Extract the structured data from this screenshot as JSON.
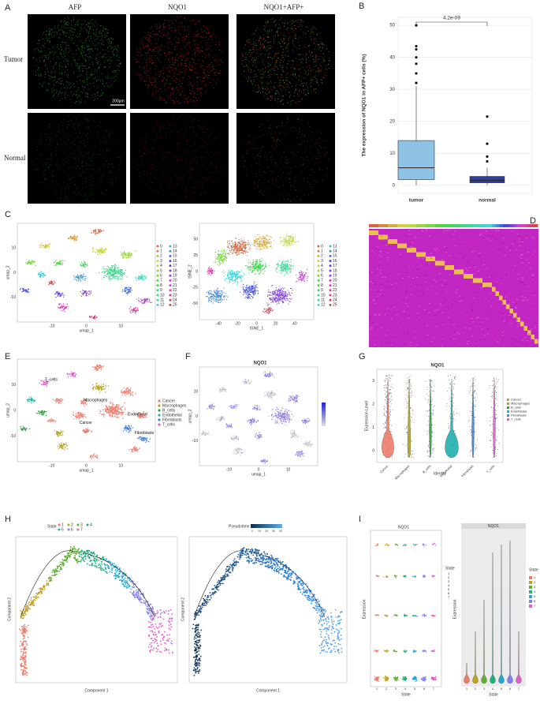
{
  "panel_a": {
    "label": "A",
    "columns": [
      "AFP",
      "NQO1",
      "NQO1+AFP+"
    ],
    "rows": [
      "Tumor",
      "Normal"
    ],
    "scale_bar": "200µm"
  },
  "chart_data": {
    "type": "box",
    "panel_label": "B",
    "y_label": "The expression of NQO1 in AFP+ cells (%)",
    "annotation": "4.2e-09",
    "categories": [
      "tumor",
      "normal"
    ],
    "colors": [
      "#8ec3e6",
      "#2f3f97"
    ],
    "stats": [
      {
        "whisker_low": 0,
        "q1": 1.8,
        "median": 5.5,
        "q3": 14,
        "whisker_high": 31,
        "outliers": [
          32,
          35,
          38,
          40,
          42.5,
          43.5,
          50
        ]
      },
      {
        "whisker_low": 0,
        "q1": 0.8,
        "median": 1.5,
        "q3": 2.8,
        "whisker_high": 5.5,
        "outliers": [
          7.5,
          9,
          13,
          21.5
        ]
      }
    ],
    "ylim": [
      -2.5,
      52.5
    ],
    "yticks": [
      0,
      10,
      20,
      30,
      40,
      50
    ],
    "grid": true
  },
  "panel_c": {
    "label": "C",
    "umap": {
      "x_label": "umap_1",
      "y_label": "umap_2",
      "xticks": [
        "-10",
        "0",
        "10"
      ],
      "yticks": [
        "10",
        "0",
        "-10"
      ]
    },
    "clusters": [
      "0",
      "1",
      "2",
      "3",
      "4",
      "5",
      "6",
      "7",
      "8",
      "9",
      "10",
      "11",
      "12",
      "13",
      "14",
      "15",
      "16",
      "17",
      "18",
      "19",
      "20",
      "21",
      "22",
      "23",
      "24",
      "25"
    ],
    "tsne": {
      "x_label": "tSNE_1",
      "y_label": "tSNE_2",
      "xticks": [
        "-40",
        "-20",
        "0",
        "20",
        "40"
      ],
      "yticks": [
        "50",
        "25",
        "0",
        "-25",
        "-50"
      ]
    }
  },
  "panel_d": {
    "label": "D"
  },
  "panel_e": {
    "label": "E",
    "cell_types": [
      "Cancer",
      "Macrophages",
      "B_cells",
      "Endothelial",
      "Fibroblasts",
      "T_cells"
    ],
    "x_label": "umap_1",
    "y_label": "umap_2",
    "xticks": [
      "-10",
      "0",
      "10"
    ],
    "yticks": [
      "10",
      "0",
      "-10"
    ]
  },
  "panel_f": {
    "label": "F",
    "title": "NQO1",
    "x_label": "umap_1",
    "y_label": "umap_2",
    "xticks": [
      "-10",
      "0",
      "10"
    ],
    "yticks": [
      "10",
      "0",
      "-10"
    ]
  },
  "panel_g": {
    "label": "G",
    "title": "NQO1",
    "y_label": "Expression Level",
    "x_label": "Identity",
    "yticks": [
      "3",
      "2",
      "1",
      "0"
    ]
  },
  "panel_h": {
    "label": "H",
    "state_title": "State",
    "states": [
      "1",
      "2",
      "3",
      "4",
      "5",
      "6",
      "7"
    ],
    "pseudotime_title": "Pseudotime",
    "pseudotime_ticks": [
      "0",
      "10",
      "20",
      "30",
      "40"
    ],
    "x_label": "Component 1",
    "y_label": "Component 2"
  },
  "panel_i": {
    "label": "I",
    "title": "NQO1",
    "x_label": "State",
    "y_label": "Expression",
    "legend_title": "State",
    "states": [
      "1",
      "2",
      "3",
      "4",
      "5",
      "6",
      "7"
    ]
  }
}
